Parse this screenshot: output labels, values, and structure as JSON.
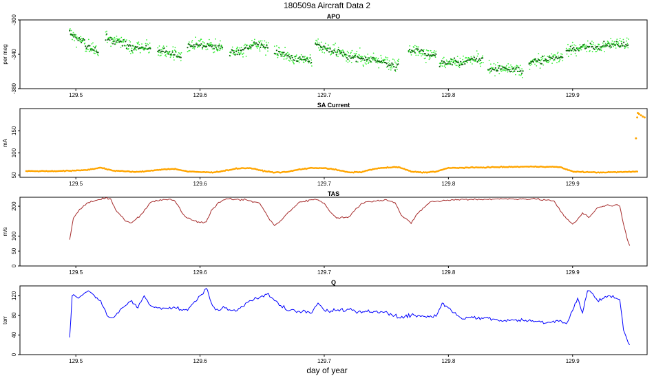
{
  "figure": {
    "title": "180509a   Aircraft Data 2",
    "xlabel": "day of year"
  },
  "chart_data": [
    {
      "type": "scatter",
      "title": "APO",
      "ylabel": "per meg",
      "xlim": [
        129.455,
        129.96
      ],
      "ylim": [
        -380,
        -300
      ],
      "xticks": [
        129.5,
        129.6,
        129.7,
        129.8,
        129.9
      ],
      "yticks": [
        -300,
        -340,
        -380
      ],
      "color": "#33ee33",
      "color_dark": "#116611",
      "x_range": [
        129.495,
        129.945
      ],
      "segments": [
        {
          "x0": 129.495,
          "x1": 129.518,
          "y0": -315,
          "y1": -340
        },
        {
          "x0": 129.524,
          "x1": 129.548,
          "y0": -320,
          "y1": -333
        },
        {
          "x0": 129.548,
          "x1": 129.56,
          "y0": -333,
          "y1": -330
        },
        {
          "x0": 129.566,
          "x1": 129.585,
          "y0": -336,
          "y1": -342
        },
        {
          "x0": 129.59,
          "x1": 129.618,
          "y0": -330,
          "y1": -333
        },
        {
          "x0": 129.624,
          "x1": 129.655,
          "y0": -338,
          "y1": -328
        },
        {
          "x0": 129.66,
          "x1": 129.69,
          "y0": -338,
          "y1": -350
        },
        {
          "x0": 129.693,
          "x1": 129.73,
          "y0": -328,
          "y1": -345
        },
        {
          "x0": 129.73,
          "x1": 129.76,
          "y0": -345,
          "y1": -350
        },
        {
          "x0": 129.768,
          "x1": 129.79,
          "y0": -333,
          "y1": -340
        },
        {
          "x0": 129.793,
          "x1": 129.828,
          "y0": -352,
          "y1": -345
        },
        {
          "x0": 129.832,
          "x1": 129.86,
          "y0": -355,
          "y1": -358
        },
        {
          "x0": 129.865,
          "x1": 129.892,
          "y0": -350,
          "y1": -342
        },
        {
          "x0": 129.895,
          "x1": 129.945,
          "y0": -335,
          "y1": -325
        }
      ]
    },
    {
      "type": "scatter",
      "title": "SA Current",
      "ylabel": "mA",
      "xlim": [
        129.455,
        129.96
      ],
      "ylim": [
        45,
        200
      ],
      "xticks": [
        129.5,
        129.6,
        129.7,
        129.8,
        129.9
      ],
      "yticks": [
        50,
        100,
        150
      ],
      "color": "#ffa500",
      "x": [
        129.46,
        129.48,
        129.5,
        129.51,
        129.52,
        129.53,
        129.55,
        129.57,
        129.58,
        129.59,
        129.6,
        129.61,
        129.62,
        129.63,
        129.64,
        129.65,
        129.66,
        129.67,
        129.68,
        129.69,
        129.7,
        129.71,
        129.72,
        129.73,
        129.74,
        129.75,
        129.76,
        129.77,
        129.78,
        129.79,
        129.8,
        129.82,
        129.84,
        129.86,
        129.87,
        129.88,
        129.89,
        129.9,
        129.92,
        129.94,
        129.953
      ],
      "y": [
        59,
        59,
        60,
        62,
        67,
        60,
        57,
        63,
        64,
        58,
        57,
        56,
        60,
        65,
        66,
        60,
        56,
        57,
        63,
        66,
        66,
        62,
        56,
        57,
        64,
        67,
        68,
        58,
        56,
        58,
        66,
        67,
        68,
        69,
        69,
        69,
        68,
        58,
        56,
        57,
        58
      ],
      "extra_points": [
        {
          "x": 129.951,
          "y": 133
        },
        {
          "x": 129.952,
          "y": 180
        },
        {
          "x": 129.9525,
          "y": 190
        },
        {
          "x": 129.9535,
          "y": 188
        },
        {
          "x": 129.955,
          "y": 185
        },
        {
          "x": 129.9565,
          "y": 182
        },
        {
          "x": 129.958,
          "y": 180
        }
      ]
    },
    {
      "type": "line",
      "title": "TAS",
      "ylabel": "m/s",
      "xlim": [
        129.455,
        129.96
      ],
      "ylim": [
        0,
        230
      ],
      "xticks": [
        129.5,
        129.6,
        129.7,
        129.8,
        129.9
      ],
      "yticks": [
        0,
        50,
        100,
        200
      ],
      "color": "#a52a2a",
      "x": [
        129.495,
        129.498,
        129.503,
        129.51,
        129.518,
        129.524,
        129.528,
        129.532,
        129.54,
        129.545,
        129.552,
        129.56,
        129.568,
        129.576,
        129.58,
        129.586,
        129.59,
        129.6,
        129.605,
        129.61,
        129.615,
        129.62,
        129.628,
        129.638,
        129.648,
        129.655,
        129.66,
        129.666,
        129.67,
        129.68,
        129.69,
        129.695,
        129.7,
        129.705,
        129.71,
        129.72,
        129.73,
        129.74,
        129.75,
        129.757,
        129.762,
        129.77,
        129.775,
        129.785,
        129.795,
        129.81,
        129.83,
        129.85,
        129.87,
        129.885,
        129.89,
        129.895,
        129.9,
        129.903,
        129.908,
        129.913,
        129.92,
        129.928,
        129.932,
        129.935,
        129.938,
        129.941,
        129.944,
        129.946
      ],
      "y": [
        88,
        160,
        190,
        212,
        222,
        228,
        225,
        188,
        150,
        145,
        170,
        212,
        222,
        224,
        216,
        175,
        160,
        145,
        148,
        190,
        213,
        222,
        223,
        220,
        210,
        162,
        135,
        155,
        175,
        214,
        222,
        221,
        210,
        180,
        160,
        165,
        210,
        218,
        222,
        212,
        170,
        142,
        175,
        214,
        218,
        223,
        223,
        225,
        224,
        218,
        185,
        158,
        140,
        150,
        178,
        162,
        195,
        205,
        200,
        205,
        200,
        140,
        90,
        68
      ]
    },
    {
      "type": "line",
      "title": "Q",
      "ylabel": "torr",
      "xlim": [
        129.455,
        129.96
      ],
      "ylim": [
        0,
        140
      ],
      "xticks": [
        129.5,
        129.6,
        129.7,
        129.8,
        129.9
      ],
      "yticks": [
        0,
        40,
        80,
        120
      ],
      "color": "#0000ff",
      "x": [
        129.495,
        129.497,
        129.502,
        129.51,
        129.515,
        129.52,
        129.525,
        129.53,
        129.54,
        129.545,
        129.55,
        129.555,
        129.56,
        129.57,
        129.58,
        129.59,
        129.6,
        129.605,
        129.61,
        129.615,
        129.62,
        129.625,
        129.63,
        129.64,
        129.65,
        129.655,
        129.66,
        129.665,
        129.67,
        129.68,
        129.69,
        129.695,
        129.7,
        129.71,
        129.72,
        129.725,
        129.73,
        129.74,
        129.75,
        129.76,
        129.765,
        129.77,
        129.78,
        129.79,
        129.795,
        129.8,
        129.81,
        129.82,
        129.83,
        129.84,
        129.85,
        129.86,
        129.87,
        129.88,
        129.89,
        129.895,
        129.9,
        129.904,
        129.908,
        129.912,
        129.916,
        129.92,
        129.925,
        129.93,
        129.935,
        129.938,
        129.941,
        129.944,
        129.946
      ],
      "y": [
        35,
        120,
        115,
        130,
        120,
        110,
        80,
        75,
        100,
        110,
        95,
        120,
        100,
        95,
        95,
        90,
        120,
        135,
        100,
        90,
        95,
        90,
        90,
        110,
        120,
        125,
        110,
        100,
        90,
        88,
        85,
        105,
        90,
        90,
        92,
        88,
        85,
        88,
        88,
        75,
        78,
        80,
        78,
        78,
        105,
        95,
        75,
        75,
        75,
        70,
        70,
        70,
        68,
        66,
        70,
        63,
        90,
        115,
        85,
        130,
        125,
        110,
        115,
        120,
        115,
        112,
        50,
        30,
        20
      ]
    }
  ]
}
